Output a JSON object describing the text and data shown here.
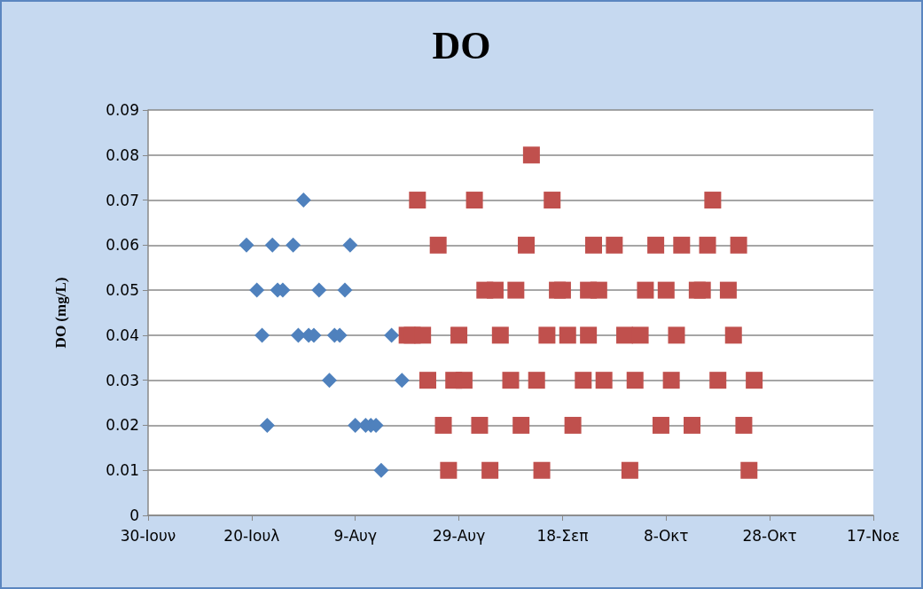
{
  "chart_data": {
    "type": "scatter",
    "title": "DO",
    "ylabel": "DO (mg/L)",
    "xlim": [
      "--06-30",
      "--11-17"
    ],
    "xticks": [
      {
        "value": "--06-30",
        "label": "30-Ιουν"
      },
      {
        "value": "--07-20",
        "label": "20-Ιουλ"
      },
      {
        "value": "--08-09",
        "label": "9-Αυγ"
      },
      {
        "value": "--08-29",
        "label": "29-Αυγ"
      },
      {
        "value": "--09-18",
        "label": "18-Σεπ"
      },
      {
        "value": "--10-08",
        "label": "8-Οκτ"
      },
      {
        "value": "--10-28",
        "label": "28-Οκτ"
      },
      {
        "value": "--11-17",
        "label": "17-Νοε"
      }
    ],
    "ylim": [
      0,
      0.09
    ],
    "yticks": [
      0,
      0.01,
      0.02,
      0.03,
      0.04,
      0.05,
      0.06,
      0.07,
      0.08,
      0.09
    ],
    "grid": "y",
    "series": [
      {
        "color": "#4f81bd",
        "marker": "diamond",
        "x": [
          "--07-30",
          "--07-19",
          "--07-24",
          "--07-28",
          "--08-08",
          "--07-21",
          "--07-25",
          "--07-26",
          "--08-02",
          "--08-07",
          "--07-22",
          "--07-29",
          "--07-31",
          "--08-01",
          "--08-05",
          "--08-06",
          "--08-16",
          "--08-04",
          "--08-18",
          "--07-23",
          "--08-09",
          "--08-11",
          "--08-12",
          "--08-13",
          "--08-14"
        ],
        "values": [
          0.07,
          0.06,
          0.06,
          0.06,
          0.06,
          0.05,
          0.05,
          0.05,
          0.05,
          0.05,
          0.04,
          0.04,
          0.04,
          0.04,
          0.04,
          0.04,
          0.04,
          0.03,
          0.03,
          0.02,
          0.02,
          0.02,
          0.02,
          0.02,
          0.01
        ]
      },
      {
        "color": "#c0504d",
        "marker": "square",
        "x": [
          "--09-12",
          "--08-21",
          "--09-01",
          "--09-16",
          "--10-17",
          "--08-25",
          "--09-11",
          "--09-24",
          "--09-28",
          "--10-06",
          "--10-11",
          "--10-16",
          "--10-22",
          "--09-03",
          "--09-05",
          "--09-09",
          "--09-17",
          "--09-18",
          "--09-23",
          "--09-25",
          "--10-04",
          "--10-08",
          "--10-14",
          "--10-15",
          "--10-20",
          "--08-19",
          "--08-20",
          "--08-22",
          "--08-29",
          "--09-06",
          "--09-15",
          "--09-19",
          "--09-23",
          "--09-30",
          "--10-03",
          "--10-10",
          "--10-21",
          "--08-23",
          "--08-28",
          "--08-30",
          "--09-08",
          "--09-13",
          "--09-22",
          "--09-26",
          "--10-02",
          "--10-09",
          "--10-18",
          "--10-25",
          "--08-26",
          "--09-02",
          "--09-10",
          "--09-20",
          "--10-07",
          "--10-13",
          "--10-23",
          "--08-27",
          "--09-04",
          "--09-14",
          "--10-01",
          "--10-24"
        ],
        "values": [
          0.08,
          0.07,
          0.07,
          0.07,
          0.07,
          0.06,
          0.06,
          0.06,
          0.06,
          0.06,
          0.06,
          0.06,
          0.06,
          0.05,
          0.05,
          0.05,
          0.05,
          0.05,
          0.05,
          0.05,
          0.05,
          0.05,
          0.05,
          0.05,
          0.05,
          0.04,
          0.04,
          0.04,
          0.04,
          0.04,
          0.04,
          0.04,
          0.04,
          0.04,
          0.04,
          0.04,
          0.04,
          0.03,
          0.03,
          0.03,
          0.03,
          0.03,
          0.03,
          0.03,
          0.03,
          0.03,
          0.03,
          0.03,
          0.02,
          0.02,
          0.02,
          0.02,
          0.02,
          0.02,
          0.02,
          0.01,
          0.01,
          0.01,
          0.01,
          0.01
        ]
      }
    ]
  }
}
